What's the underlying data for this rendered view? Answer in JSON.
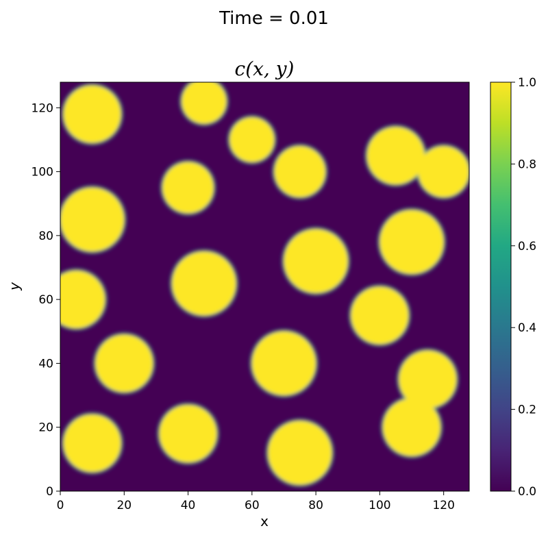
{
  "figure": {
    "suptitle": "Time = 0.01"
  },
  "colorbar": {
    "colormap": "viridis",
    "ticks": [
      "0.0",
      "0.2",
      "0.4",
      "0.6",
      "0.8",
      "1.0"
    ],
    "range": [
      0,
      1
    ]
  },
  "chart_data": {
    "type": "heatmap",
    "title": "c(x, y)",
    "xlabel": "x",
    "ylabel": "y",
    "xlim": [
      0,
      128
    ],
    "ylim": [
      0,
      128
    ],
    "xticks": [
      "0",
      "20",
      "40",
      "60",
      "80",
      "100",
      "120"
    ],
    "yticks": [
      "0",
      "20",
      "40",
      "60",
      "80",
      "100",
      "120"
    ],
    "value_range": [
      0,
      1
    ],
    "grid": false,
    "description_of_values": "binary-like phase field, values near 0 (dark purple) and 1 (yellow)",
    "high_regions": [
      {
        "x": 10,
        "y": 118,
        "r": 9
      },
      {
        "x": 45,
        "y": 122,
        "r": 7
      },
      {
        "x": 60,
        "y": 110,
        "r": 7
      },
      {
        "x": 75,
        "y": 100,
        "r": 8
      },
      {
        "x": 105,
        "y": 105,
        "r": 9
      },
      {
        "x": 120,
        "y": 100,
        "r": 8
      },
      {
        "x": 10,
        "y": 85,
        "r": 10
      },
      {
        "x": 40,
        "y": 95,
        "r": 8
      },
      {
        "x": 80,
        "y": 72,
        "r": 10
      },
      {
        "x": 110,
        "y": 78,
        "r": 10
      },
      {
        "x": 5,
        "y": 60,
        "r": 9
      },
      {
        "x": 45,
        "y": 65,
        "r": 10
      },
      {
        "x": 100,
        "y": 55,
        "r": 9
      },
      {
        "x": 20,
        "y": 40,
        "r": 9
      },
      {
        "x": 70,
        "y": 40,
        "r": 10
      },
      {
        "x": 115,
        "y": 35,
        "r": 9
      },
      {
        "x": 10,
        "y": 15,
        "r": 9
      },
      {
        "x": 40,
        "y": 18,
        "r": 9
      },
      {
        "x": 75,
        "y": 12,
        "r": 10
      },
      {
        "x": 110,
        "y": 20,
        "r": 9
      }
    ]
  }
}
